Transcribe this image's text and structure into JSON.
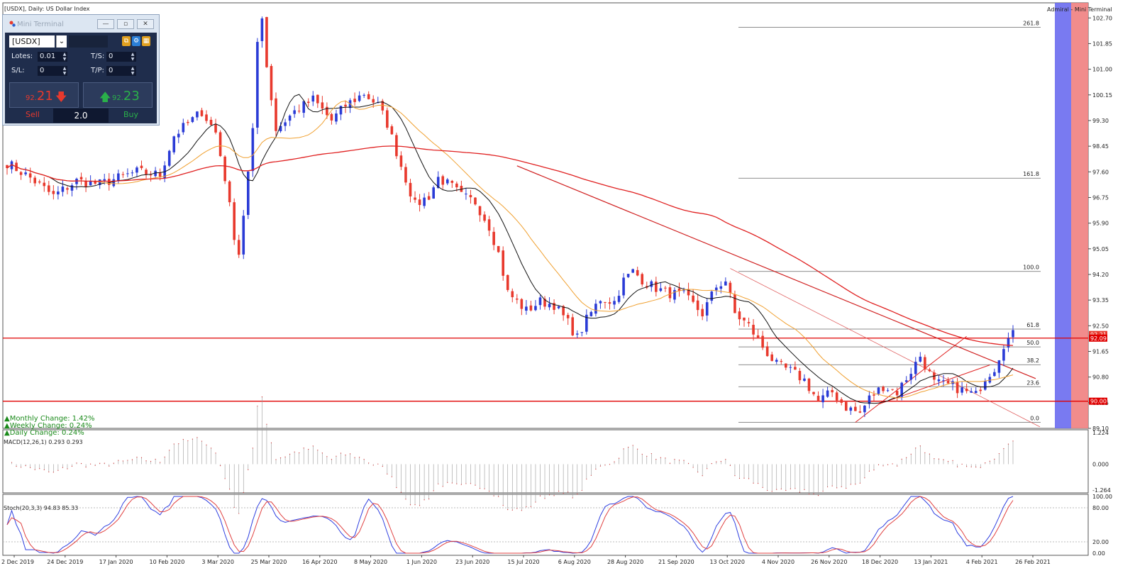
{
  "chart_title": "[USDX], Daily:  US Dollar Index",
  "broker_label": "Admiral - Mini Terminal",
  "colors": {
    "bull": "#2a3bd6",
    "bear": "#e8392d",
    "ma_short": "#111111",
    "ma_mid": "#f0a030",
    "ma_long": "#e02020",
    "hline": "#e00000",
    "fib": "#666666",
    "macd": "#d03030",
    "stoch_main": "#3040e0",
    "stoch_signal": "#e04040",
    "blue_band": "#6a6cf0",
    "red_band": "#f08080"
  },
  "mini_terminal": {
    "title": "Mini Terminal",
    "symbol": "[USDX]",
    "lots_label": "Lotes:",
    "lots_value": "0.01",
    "ts_label": "T/S:",
    "ts_value": "0",
    "sl_label": "S/L:",
    "sl_value": "0",
    "tp_label": "T/P:",
    "tp_value": "0",
    "sell_price_small": "92.",
    "sell_price_big": "21",
    "buy_price_small": "92.",
    "buy_price_big": "23",
    "sell_label": "Sell",
    "buy_label": "Buy",
    "volume": "2.0",
    "icons": [
      "copy-icon",
      "settings-icon",
      "grid-icon"
    ]
  },
  "changes": [
    "▲Monthly Change: 1.42%",
    "▲Weekly Change: 0.24%",
    "▲Daily Change: 0.24%"
  ],
  "price_axis_ticks": [
    "102.70",
    "101.85",
    "101.00",
    "100.15",
    "99.30",
    "98.45",
    "97.60",
    "96.75",
    "95.90",
    "95.05",
    "94.20",
    "93.35",
    "92.50",
    "91.65",
    "90.80",
    "89.95",
    "89.10"
  ],
  "price_badges": [
    {
      "text": "92.21",
      "color": "#e8392d"
    },
    {
      "text": "92.09",
      "color": "#e00000"
    },
    {
      "text": "90.00",
      "color": "#e00000"
    }
  ],
  "date_labels": [
    "2 Dec 2019",
    "24 Dec 2019",
    "17 Jan 2020",
    "10 Feb 2020",
    "3 Mar 2020",
    "25 Mar 2020",
    "16 Apr 2020",
    "8 May 2020",
    "1 Jun 2020",
    "23 Jun 2020",
    "15 Jul 2020",
    "6 Aug 2020",
    "28 Aug 2020",
    "21 Sep 2020",
    "13 Oct 2020",
    "4 Nov 2020",
    "26 Nov 2020",
    "18 Dec 2020",
    "13 Jan 2021",
    "4 Feb 2021",
    "26 Feb 2021"
  ],
  "fib_labels": [
    "261.8",
    "161.8",
    "100.0",
    "61.8",
    "50.0",
    "38.2",
    "23.6",
    "0.0"
  ],
  "macd_title": "MACD(12,26,1) 0.293 0.293",
  "macd_ticks": [
    "1.224",
    "0.000",
    "-1.264"
  ],
  "stoch_title": "Stoch(20,3,3) 94.83 85.33",
  "stoch_ticks": [
    "100.00",
    "80.00",
    "20.00",
    "0.00"
  ],
  "chart_data": {
    "type": "candlestick",
    "title": "[USDX], Daily:  US Dollar Index",
    "ylim": [
      89.1,
      103.2
    ],
    "horizontal_lines": [
      92.09,
      90.0
    ],
    "fibonacci": {
      "levels": [
        "261.8",
        "161.8",
        "100.0",
        "61.8",
        "50.0",
        "38.2",
        "23.6",
        "0.0"
      ],
      "low": 89.3,
      "high": 94.3
    },
    "price_path": [
      [
        0,
        97.9
      ],
      [
        5,
        97.4
      ],
      [
        10,
        96.8
      ],
      [
        15,
        97.3
      ],
      [
        20,
        97.2
      ],
      [
        28,
        97.6
      ],
      [
        33,
        97.5
      ],
      [
        36,
        98.8
      ],
      [
        42,
        99.6
      ],
      [
        45,
        98.9
      ],
      [
        47,
        97.4
      ],
      [
        49,
        95.5
      ],
      [
        50,
        94.9
      ],
      [
        51,
        96.2
      ],
      [
        53,
        98.9
      ],
      [
        54,
        101.9
      ],
      [
        55,
        102.8
      ],
      [
        56,
        101.1
      ],
      [
        58,
        99.0
      ],
      [
        62,
        99.6
      ],
      [
        66,
        100.0
      ],
      [
        70,
        99.3
      ],
      [
        73,
        99.8
      ],
      [
        77,
        100.2
      ],
      [
        80,
        99.8
      ],
      [
        82,
        99.2
      ],
      [
        85,
        97.8
      ],
      [
        88,
        96.5
      ],
      [
        91,
        96.8
      ],
      [
        93,
        97.4
      ],
      [
        96,
        97.1
      ],
      [
        98,
        96.8
      ],
      [
        101,
        96.6
      ],
      [
        104,
        95.8
      ],
      [
        106,
        94.9
      ],
      [
        108,
        93.6
      ],
      [
        112,
        93.0
      ],
      [
        115,
        93.3
      ],
      [
        118,
        93.2
      ],
      [
        121,
        92.6
      ],
      [
        123,
        92.1
      ],
      [
        125,
        92.7
      ],
      [
        128,
        93.4
      ],
      [
        131,
        93.3
      ],
      [
        133,
        94.0
      ],
      [
        135,
        94.3
      ],
      [
        138,
        93.9
      ],
      [
        142,
        93.6
      ],
      [
        146,
        93.5
      ],
      [
        150,
        92.9
      ],
      [
        153,
        93.8
      ],
      [
        155,
        94.0
      ],
      [
        157,
        92.9
      ],
      [
        160,
        92.5
      ],
      [
        163,
        91.8
      ],
      [
        166,
        91.2
      ],
      [
        169,
        91.0
      ],
      [
        172,
        90.7
      ],
      [
        175,
        90.0
      ],
      [
        178,
        90.3
      ],
      [
        181,
        89.8
      ],
      [
        184,
        89.6
      ],
      [
        186,
        90.1
      ],
      [
        189,
        90.5
      ],
      [
        192,
        90.3
      ],
      [
        195,
        91.0
      ],
      [
        197,
        91.5
      ],
      [
        200,
        90.6
      ],
      [
        204,
        90.5
      ],
      [
        207,
        90.3
      ],
      [
        209,
        90.2
      ],
      [
        211,
        90.8
      ],
      [
        213,
        91.1
      ],
      [
        215,
        91.9
      ],
      [
        217,
        92.2
      ]
    ],
    "n_days": 218,
    "sma_short_period": 10,
    "sma_mid_period": 20,
    "sma_long_period": 100
  }
}
